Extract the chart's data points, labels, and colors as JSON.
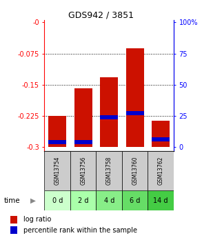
{
  "title": "GDS942 / 3851",
  "samples": [
    "GSM13754",
    "GSM13756",
    "GSM13758",
    "GSM13760",
    "GSM13762"
  ],
  "time_labels": [
    "0 d",
    "2 d",
    "4 d",
    "6 d",
    "14 d"
  ],
  "log_ratio": [
    -0.225,
    -0.158,
    -0.132,
    -0.063,
    -0.237
  ],
  "percentile_rank": [
    0.04,
    0.04,
    0.24,
    0.27,
    0.06
  ],
  "bar_bottom": -0.3,
  "ymin": -0.31,
  "ymax": 0.005,
  "yticks_left": [
    0,
    -0.075,
    -0.15,
    -0.225,
    -0.3
  ],
  "ytick_labels_left": [
    "-0",
    "-0.075",
    "-0.15",
    "-0.225",
    "-0.3"
  ],
  "yticks_right_pct": [
    100,
    75,
    50,
    25,
    0
  ],
  "bar_color": "#cc1100",
  "blue_color": "#0000cc",
  "bar_width": 0.7,
  "legend_red_label": "log ratio",
  "legend_blue_label": "percentile rank within the sample",
  "green_colors": [
    "#ccffcc",
    "#aaffaa",
    "#88ee88",
    "#66dd66",
    "#44cc44"
  ],
  "gray_color": "#cccccc"
}
